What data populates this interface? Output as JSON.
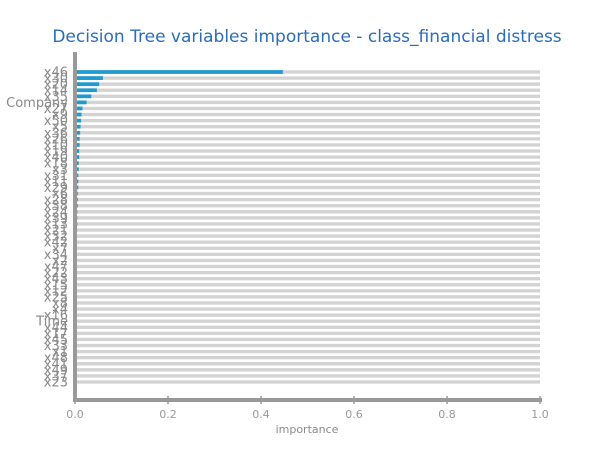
{
  "chart_data": {
    "type": "bar",
    "orientation": "horizontal",
    "title": "Decision Tree variables importance - class_financial distress",
    "xlabel": "importance",
    "ylabel": "",
    "xlim": [
      0,
      1.0
    ],
    "x_ticks": [
      "0.0",
      "0.2",
      "0.4",
      "0.6",
      "0.8",
      "1.0"
    ],
    "grid": "horizontal bands per category",
    "colors": {
      "bar": "#1f9bd1",
      "band": "#d3d3d3",
      "axis": "#999999",
      "title": "#2a6ebb",
      "label": "#8a8a8a"
    },
    "categories": [
      "x46",
      "x30",
      "x20",
      "x14",
      "x35",
      "Company",
      "x27",
      "x9",
      "x50",
      "x5",
      "x36",
      "x26",
      "x10",
      "x19",
      "x40",
      "x18",
      "x3",
      "x31",
      "x11",
      "x29",
      "x6",
      "x28",
      "x38",
      "x24",
      "x39",
      "x13",
      "x21",
      "x32",
      "x42",
      "x7",
      "x34",
      "x2",
      "x47",
      "x22",
      "x43",
      "x15",
      "x12",
      "x25",
      "x8",
      "x4",
      "x16",
      "Time",
      "x44",
      "x17",
      "x45",
      "x33",
      "x1",
      "x48",
      "x41",
      "x49",
      "x37",
      "x23"
    ],
    "values": [
      0.447,
      0.06,
      0.052,
      0.047,
      0.035,
      0.025,
      0.016,
      0.014,
      0.013,
      0.012,
      0.011,
      0.01,
      0.01,
      0.009,
      0.009,
      0.008,
      0.008,
      0.007,
      0.007,
      0.007,
      0.006,
      0.006,
      0.006,
      0.005,
      0.005,
      0.005,
      0.004,
      0.004,
      0.004,
      0.004,
      0.003,
      0.003,
      0.003,
      0.003,
      0.003,
      0.002,
      0.002,
      0.002,
      0.002,
      0.002,
      0.002,
      0.002,
      0.001,
      0.001,
      0.001,
      0.001,
      0.001,
      0.001,
      0.001,
      0.001,
      0.001,
      0.001
    ],
    "y_tick_labels": [
      "x46",
      "x30",
      "x20",
      "x14",
      "x35",
      "Company",
      "x27",
      "x9",
      "x50",
      "x5",
      "x36",
      "x26",
      "x10",
      "x19",
      "x40",
      "x18",
      "x3",
      "x31",
      "x11",
      "x29",
      "x6",
      "x28",
      "x38",
      "x24",
      "x39",
      "x13",
      "x21",
      "x32",
      "x42",
      "x7",
      "x34",
      "x2",
      "x47",
      "x22",
      "x43",
      "x15",
      "x12",
      "x25",
      "x8",
      "x4",
      "x16",
      "Time",
      "x44",
      "x17",
      "x45",
      "x33",
      "x1",
      "x48",
      "x41",
      "x49",
      "x37",
      "x23"
    ]
  }
}
